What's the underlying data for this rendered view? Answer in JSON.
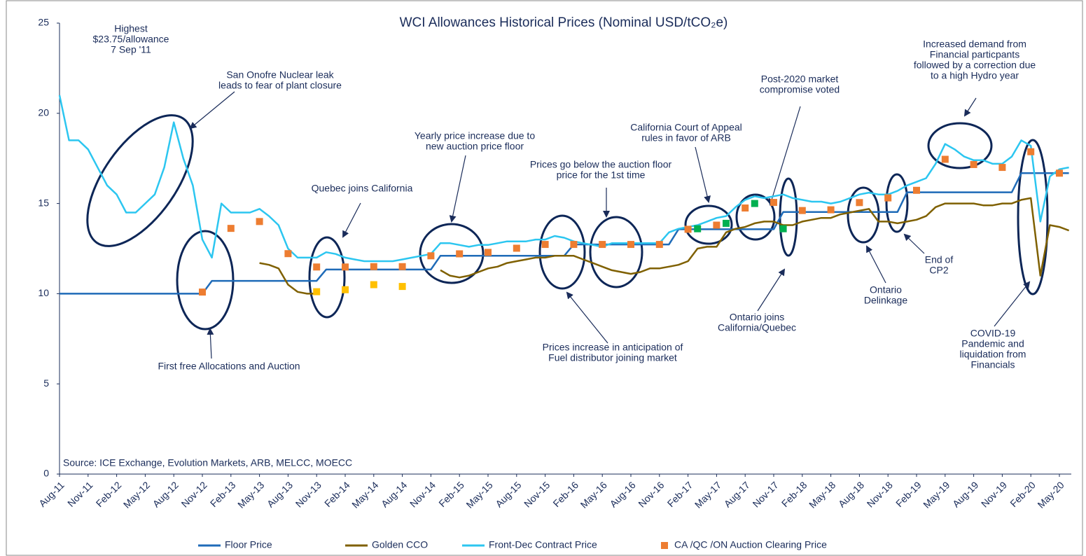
{
  "chart_data": {
    "type": "line",
    "title": "WCI Allowances Historical Prices (Nominal USD/tCO₂e)",
    "source": "Source: ICE Exchange, Evolution Markets, ARB, MELCC, MOECC",
    "x": [
      "Aug-11",
      "Sep-11",
      "Oct-11",
      "Nov-11",
      "Dec-11",
      "Jan-12",
      "Feb-12",
      "Mar-12",
      "Apr-12",
      "May-12",
      "Jun-12",
      "Jul-12",
      "Aug-12",
      "Sep-12",
      "Oct-12",
      "Nov-12",
      "Dec-12",
      "Jan-13",
      "Feb-13",
      "Mar-13",
      "Apr-13",
      "May-13",
      "Jun-13",
      "Jul-13",
      "Aug-13",
      "Sep-13",
      "Oct-13",
      "Nov-13",
      "Dec-13",
      "Jan-14",
      "Feb-14",
      "Mar-14",
      "Apr-14",
      "May-14",
      "Jun-14",
      "Jul-14",
      "Aug-14",
      "Sep-14",
      "Oct-14",
      "Nov-14",
      "Dec-14",
      "Jan-15",
      "Feb-15",
      "Mar-15",
      "Apr-15",
      "May-15",
      "Jun-15",
      "Jul-15",
      "Aug-15",
      "Sep-15",
      "Oct-15",
      "Nov-15",
      "Dec-15",
      "Jan-16",
      "Feb-16",
      "Mar-16",
      "Apr-16",
      "May-16",
      "Jun-16",
      "Jul-16",
      "Aug-16",
      "Sep-16",
      "Oct-16",
      "Nov-16",
      "Dec-16",
      "Jan-17",
      "Feb-17",
      "Mar-17",
      "Apr-17",
      "May-17",
      "Jun-17",
      "Jul-17",
      "Aug-17",
      "Sep-17",
      "Oct-17",
      "Nov-17",
      "Dec-17",
      "Jan-18",
      "Feb-18",
      "Mar-18",
      "Apr-18",
      "May-18",
      "Jun-18",
      "Jul-18",
      "Aug-18",
      "Sep-18",
      "Oct-18",
      "Nov-18",
      "Dec-18",
      "Jan-19",
      "Feb-19",
      "Mar-19",
      "Apr-19",
      "May-19",
      "Jun-19",
      "Jul-19",
      "Aug-19",
      "Sep-19",
      "Oct-19",
      "Nov-19",
      "Dec-19",
      "Jan-20",
      "Feb-20",
      "Mar-20",
      "Apr-20",
      "May-20",
      "Jun-20"
    ],
    "xticks": [
      "Aug-11",
      "Nov-11",
      "Feb-12",
      "May-12",
      "Aug-12",
      "Nov-12",
      "Feb-13",
      "May-13",
      "Aug-13",
      "Nov-13",
      "Feb-14",
      "May-14",
      "Aug-14",
      "Nov-14",
      "Feb-15",
      "May-15",
      "Aug-15",
      "Nov-15",
      "Feb-16",
      "May-16",
      "Aug-16",
      "Nov-16",
      "Feb-17",
      "May-17",
      "Aug-17",
      "Nov-17",
      "Feb-18",
      "May-18",
      "Aug-18",
      "Nov-18",
      "Feb-19",
      "May-19",
      "Aug-19",
      "Nov-19",
      "Feb-20",
      "May-20"
    ],
    "ylim": [
      0,
      25
    ],
    "yticks": [
      0,
      5,
      10,
      15,
      20,
      25
    ],
    "grid": false,
    "legend": "bottom",
    "series": [
      {
        "name": "Floor Price",
        "type": "line",
        "color": "#1f6bb8",
        "values": [
          10,
          10,
          10,
          10,
          10,
          10,
          10,
          10,
          10,
          10,
          10,
          10,
          10,
          10,
          10,
          10,
          10.71,
          10.71,
          10.71,
          10.71,
          10.71,
          10.71,
          10.71,
          10.71,
          10.71,
          10.71,
          10.71,
          10.71,
          11.34,
          11.34,
          11.34,
          11.34,
          11.34,
          11.34,
          11.34,
          11.34,
          11.34,
          11.34,
          11.34,
          11.34,
          12.1,
          12.1,
          12.1,
          12.1,
          12.1,
          12.1,
          12.1,
          12.1,
          12.1,
          12.1,
          12.1,
          12.1,
          12.1,
          12.1,
          12.73,
          12.73,
          12.73,
          12.73,
          12.73,
          12.73,
          12.73,
          12.73,
          12.73,
          12.73,
          12.73,
          13.57,
          13.57,
          13.57,
          13.57,
          13.57,
          13.57,
          13.57,
          13.57,
          13.57,
          13.57,
          13.57,
          14.53,
          14.53,
          14.53,
          14.53,
          14.53,
          14.53,
          14.53,
          14.53,
          14.53,
          14.53,
          14.53,
          14.53,
          14.53,
          15.62,
          15.62,
          15.62,
          15.62,
          15.62,
          15.62,
          15.62,
          15.62,
          15.62,
          15.62,
          15.62,
          15.62,
          16.68,
          16.68,
          16.68,
          16.68,
          16.68,
          16.68
        ]
      },
      {
        "name": "Golden CCO",
        "type": "line",
        "color": "#7f6000",
        "values": [
          null,
          null,
          null,
          null,
          null,
          null,
          null,
          null,
          null,
          null,
          null,
          null,
          null,
          null,
          null,
          null,
          null,
          null,
          null,
          null,
          null,
          11.7,
          11.6,
          11.4,
          10.5,
          10.1,
          10,
          10,
          null,
          null,
          null,
          null,
          null,
          null,
          null,
          null,
          null,
          null,
          null,
          null,
          11.3,
          11.0,
          10.9,
          11.0,
          11.2,
          11.4,
          11.5,
          11.7,
          11.8,
          11.9,
          12.0,
          12.0,
          12.1,
          12.1,
          12.1,
          11.9,
          11.7,
          11.5,
          11.3,
          11.2,
          11.1,
          11.2,
          11.4,
          11.4,
          11.5,
          11.6,
          11.8,
          12.5,
          12.6,
          12.6,
          13.4,
          13.6,
          13.7,
          13.9,
          14.0,
          14.0,
          13.8,
          13.8,
          14.0,
          14.1,
          14.2,
          14.2,
          14.4,
          14.5,
          14.6,
          14.7,
          14.0,
          14.0,
          13.9,
          14.0,
          14.1,
          14.3,
          14.8,
          15.0,
          15.0,
          15.0,
          15.0,
          14.9,
          14.9,
          15.0,
          15.0,
          15.2,
          15.3,
          11,
          13.8,
          13.7,
          13.5
        ]
      },
      {
        "name": "Front-Dec Contract Price",
        "type": "line",
        "color": "#2cc6f0",
        "values": [
          21,
          18.5,
          18.5,
          18,
          17,
          16,
          15.5,
          14.5,
          14.5,
          15,
          15.5,
          17,
          19.5,
          17.5,
          16,
          13,
          12,
          15,
          14.5,
          14.5,
          14.5,
          14.7,
          14.3,
          13.8,
          12.5,
          12,
          12,
          12,
          12.3,
          12.2,
          12,
          11.9,
          11.8,
          11.8,
          11.8,
          11.8,
          11.9,
          12,
          12.1,
          12.2,
          12.8,
          12.8,
          12.7,
          12.6,
          12.7,
          12.7,
          12.8,
          12.9,
          12.9,
          12.9,
          13,
          13,
          13.2,
          13.1,
          12.9,
          12.8,
          12.7,
          12.6,
          12.8,
          12.8,
          12.8,
          12.8,
          12.8,
          12.8,
          13.4,
          13.6,
          13.7,
          13.8,
          14,
          14.2,
          14.3,
          14.8,
          15.2,
          15.4,
          15.3,
          15.4,
          15.5,
          15.3,
          15.2,
          15.1,
          15.1,
          15,
          15.1,
          15.3,
          15.5,
          15.6,
          15.5,
          15.5,
          15.7,
          16,
          16.2,
          16.4,
          17.2,
          18.3,
          18,
          17.6,
          17.4,
          17.4,
          17.2,
          17.2,
          17.6,
          18.5,
          18.2,
          14,
          16.5,
          16.9,
          17
        ]
      },
      {
        "name": "CA /QC /ON Auction Clearing Price",
        "type": "scatter",
        "color": "#ed7d31",
        "x": [
          "Nov-12",
          "Feb-13",
          "May-13",
          "Aug-13",
          "Nov-13",
          "Feb-14",
          "May-14",
          "Aug-14",
          "Nov-14",
          "Feb-15",
          "May-15",
          "Aug-15",
          "Nov-15",
          "Feb-16",
          "May-16",
          "Aug-16",
          "Nov-16",
          "Feb-17",
          "May-17",
          "Aug-17",
          "Nov-17",
          "Feb-18",
          "May-18",
          "Aug-18",
          "Nov-18",
          "Feb-19",
          "May-19",
          "Aug-19",
          "Nov-19",
          "Feb-20",
          "May-20"
        ],
        "values": [
          10.09,
          13.62,
          14.0,
          12.22,
          11.48,
          11.48,
          11.5,
          11.5,
          12.1,
          12.21,
          12.29,
          12.52,
          12.73,
          12.73,
          12.73,
          12.73,
          12.73,
          13.57,
          13.8,
          14.75,
          15.06,
          14.61,
          14.65,
          15.05,
          15.31,
          15.73,
          17.45,
          17.16,
          17.0,
          17.87,
          16.68
        ]
      },
      {
        "type": "scatter",
        "color": "#ffc000",
        "x": [
          "Nov-13",
          "Feb-14",
          "May-14",
          "Aug-14"
        ],
        "values": [
          10.11,
          10.22,
          10.5,
          10.4
        ]
      },
      {
        "type": "scatter",
        "color": "#00b050",
        "x": [
          "Mar-17",
          "Jun-17",
          "Sep-17",
          "Dec-17"
        ],
        "values": [
          13.6,
          13.9,
          15.0,
          13.6
        ]
      }
    ],
    "annotations": [
      [
        "Highest",
        "$23.75/allowance",
        "7 Sep '11"
      ],
      [
        "San Onofre Nuclear leak",
        "leads to fear of plant closure"
      ],
      [
        "First free Allocations and Auction"
      ],
      [
        "Quebec joins California"
      ],
      [
        "Yearly price increase due to",
        "new auction price floor"
      ],
      [
        "Prices go below the auction floor",
        "price for the 1st time"
      ],
      [
        "California Court of Appeal",
        "rules in favor of ARB"
      ],
      [
        "Post-2020 market",
        "compromise voted"
      ],
      [
        "Increased demand from",
        "Financial particpants",
        "followed by a correction due",
        "to a high Hydro year"
      ],
      [
        "Prices increase in anticipation of",
        "Fuel distributor joining market"
      ],
      [
        "Ontario joins",
        "California/Quebec"
      ],
      [
        "Ontario",
        "Delinkage"
      ],
      [
        "End of",
        "CP2"
      ],
      [
        "COVID-19",
        "Pandemic and",
        "liquidation from",
        "Financials"
      ]
    ]
  }
}
